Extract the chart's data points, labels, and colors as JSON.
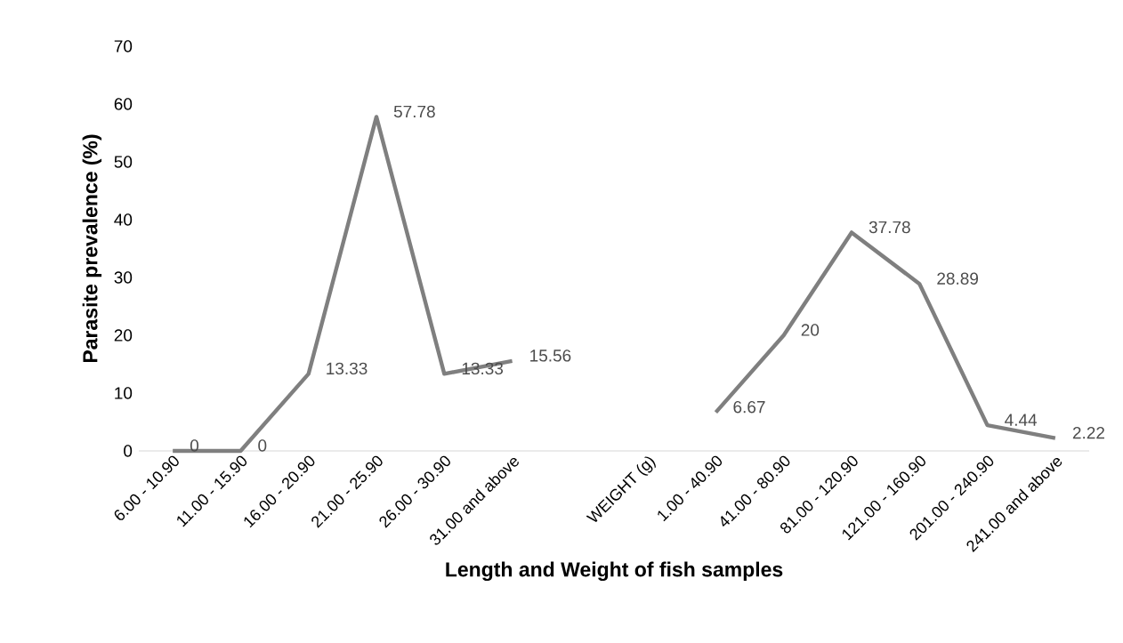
{
  "chart_data": {
    "type": "line",
    "xlabel": "Length and Weight of fish samples",
    "ylabel": "Parasite prevalence (%)",
    "categories": [
      "6.00 - 10.90",
      "11.00 - 15.90",
      "16.00 - 20.90",
      "21.00 - 25.90",
      "26.00 - 30.90",
      "31.00 and above",
      null,
      "WEIGHT (g)",
      "1.00 - 40.90",
      "41.00 - 80.90",
      "81.00 - 120.90",
      "121.00 - 160.90",
      "201.00 - 240.90",
      "241.00 and above"
    ],
    "series": [
      {
        "color": "#7f7f7f",
        "values": [
          0,
          0,
          13.33,
          57.78,
          13.33,
          15.56,
          null,
          null,
          6.67,
          20,
          37.78,
          28.89,
          4.44,
          2.22
        ]
      }
    ],
    "ylim": [
      0,
      70
    ],
    "yticks": [
      0,
      10,
      20,
      30,
      40,
      50,
      60,
      70
    ],
    "data_labels": true
  }
}
